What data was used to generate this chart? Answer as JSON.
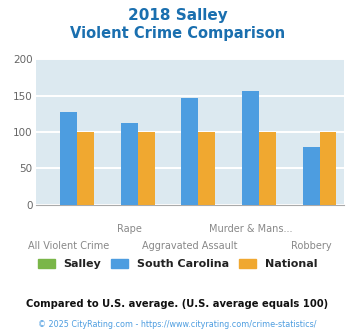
{
  "title_line1": "2018 Salley",
  "title_line2": "Violent Crime Comparison",
  "title_color": "#1a6faf",
  "tick_labels": [
    "All Violent Crime",
    "Rape",
    "Aggravated Assault",
    "Murder & Mans...",
    "Robbery"
  ],
  "tick_stagger": [
    0,
    1,
    0,
    1,
    0
  ],
  "salley": [
    0,
    0,
    0,
    0,
    0
  ],
  "south_carolina": [
    128,
    113,
    147,
    157,
    80
  ],
  "national": [
    100,
    100,
    100,
    100,
    100
  ],
  "salley_color": "#7ab648",
  "sc_color": "#4d9de0",
  "national_color": "#f0a830",
  "ylim": [
    0,
    200
  ],
  "yticks": [
    0,
    50,
    100,
    150,
    200
  ],
  "bg_color": "#dce9f0",
  "grid_color": "#ffffff",
  "legend_labels": [
    "Salley",
    "South Carolina",
    "National"
  ],
  "footnote1": "Compared to U.S. average. (U.S. average equals 100)",
  "footnote2": "© 2025 CityRating.com - https://www.cityrating.com/crime-statistics/",
  "footnote1_color": "#111111",
  "footnote2_color": "#4d9de0"
}
